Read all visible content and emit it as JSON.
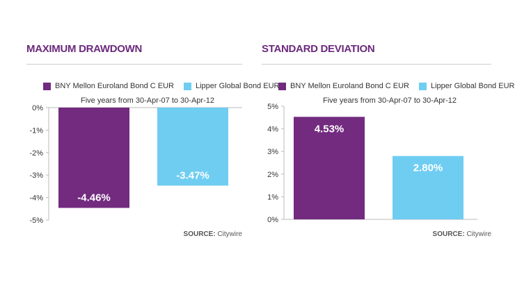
{
  "source_label": "SOURCE:",
  "source_value": "Citywire",
  "colors": {
    "fund": "#722b7f",
    "sector": "#6fcdf2",
    "title": "#6b2a7c"
  },
  "legend": [
    {
      "name": "BNY Mellon Euroland Bond C EUR",
      "color": "#722b7f"
    },
    {
      "name": "Lipper Global Bond EUR",
      "color": "#6fcdf2"
    }
  ],
  "period": "Five years from 30-Apr-07 to 30-Apr-12",
  "chart_data": [
    {
      "type": "bar",
      "title": "MAXIMUM DRAWDOWN",
      "subtitle": "Five years from 30-Apr-07 to 30-Apr-12",
      "categories": [
        "BNY Mellon Euroland Bond C EUR",
        "Lipper Global Bond EUR"
      ],
      "values": [
        -4.46,
        -3.47
      ],
      "data_labels": [
        "-4.46%",
        "-3.47%"
      ],
      "ylim": [
        -5,
        0
      ],
      "yticks": [
        "0%",
        "-1%",
        "-2%",
        "-3%",
        "-4%",
        "-5%"
      ],
      "legend_placement": "top",
      "grid": false
    },
    {
      "type": "bar",
      "title": "STANDARD DEVIATION",
      "subtitle": "Five years from 30-Apr-07 to 30-Apr-12",
      "categories": [
        "BNY Mellon Euroland Bond C EUR",
        "Lipper Global Bond EUR"
      ],
      "values": [
        4.53,
        2.8
      ],
      "data_labels": [
        "4.53%",
        "2.80%"
      ],
      "ylim": [
        0,
        5
      ],
      "yticks": [
        "5%",
        "4%",
        "3%",
        "2%",
        "1%",
        "0%"
      ],
      "legend_placement": "top",
      "grid": false
    }
  ]
}
